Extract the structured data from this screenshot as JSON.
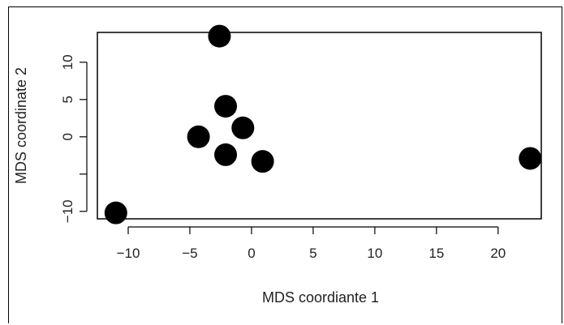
{
  "chart_data": {
    "type": "scatter",
    "title": "",
    "xlabel": "MDS coordiante 1",
    "ylabel": "MDS coordinate 2",
    "xlim": [
      -12.5,
      23.5
    ],
    "ylim": [
      -11,
      14
    ],
    "x_ticks": [
      -10,
      -5,
      0,
      5,
      10,
      15,
      20
    ],
    "y_ticks": [
      -10,
      -5,
      0,
      5,
      10
    ],
    "x_tick_labels": [
      "−10",
      "−5",
      "0",
      "5",
      "10",
      "15",
      "20"
    ],
    "y_tick_labels": [
      "−10",
      "",
      "0",
      "5",
      "10"
    ],
    "grid": false,
    "points": [
      {
        "x": -2.6,
        "y": 13.5
      },
      {
        "x": -2.1,
        "y": 4.1
      },
      {
        "x": -0.7,
        "y": 1.2
      },
      {
        "x": -4.3,
        "y": 0.0
      },
      {
        "x": -2.1,
        "y": -2.4
      },
      {
        "x": 0.9,
        "y": -3.3
      },
      {
        "x": 22.6,
        "y": -2.9
      },
      {
        "x": -11.0,
        "y": -10.2
      }
    ],
    "point_color": "#000000"
  }
}
